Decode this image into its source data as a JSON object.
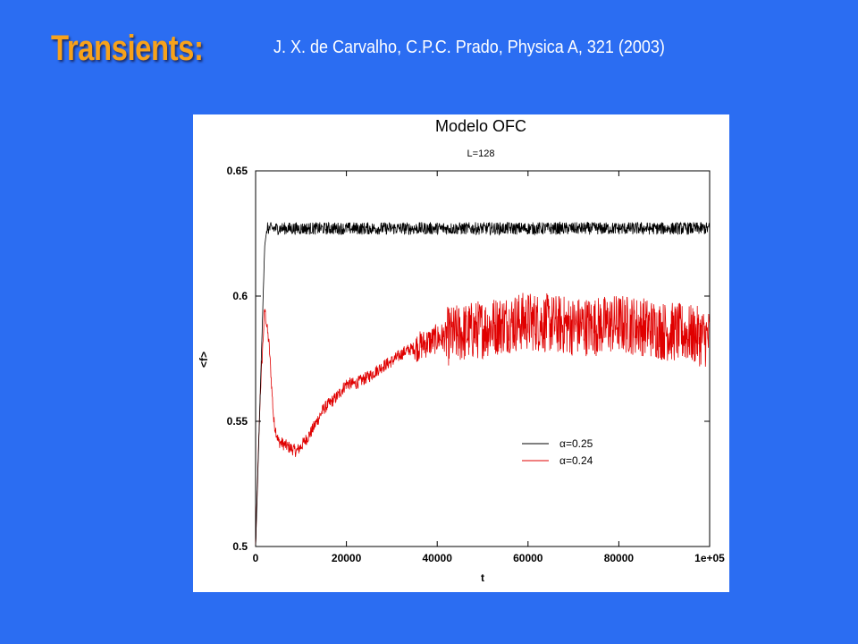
{
  "slide": {
    "title": "Transients:",
    "citation": "J. X. de Carvalho, C.P.C. Prado, Physica A, 321 (2003)"
  },
  "chart_data": {
    "type": "line",
    "title": "Modelo OFC",
    "subtitle": "L=128",
    "xlabel": "t",
    "ylabel": "<f>",
    "xlim": [
      0,
      100000
    ],
    "ylim": [
      0.5,
      0.65
    ],
    "xticks": [
      0,
      20000,
      40000,
      60000,
      80000,
      100000
    ],
    "xtick_labels": [
      "0",
      "20000",
      "40000",
      "60000",
      "80000",
      "1e+05"
    ],
    "yticks": [
      0.5,
      0.55,
      0.6,
      0.65
    ],
    "ytick_labels": [
      "0.5",
      "0.55",
      "0.6",
      "0.65"
    ],
    "grid": false,
    "legend_position": "bottom-right",
    "series": [
      {
        "name": "α=0.25",
        "color": "#000000",
        "x": [
          0,
          2000,
          2500,
          5000,
          10000,
          20000,
          30000,
          40000,
          50000,
          60000,
          70000,
          80000,
          90000,
          100000
        ],
        "y": [
          0.5,
          0.62,
          0.627,
          0.627,
          0.627,
          0.627,
          0.627,
          0.627,
          0.627,
          0.627,
          0.627,
          0.627,
          0.627,
          0.627
        ],
        "noise": 0.0025
      },
      {
        "name": "α=0.24",
        "color": "#e00000",
        "x": [
          0,
          1000,
          2000,
          3000,
          4000,
          5000,
          7000,
          9000,
          10000,
          12000,
          15000,
          18000,
          20000,
          22000,
          25000,
          28000,
          30000,
          33000,
          36000,
          40000,
          45000,
          50000,
          55000,
          60000,
          65000,
          70000,
          75000,
          80000,
          85000,
          90000,
          95000,
          100000
        ],
        "y": [
          0.5,
          0.56,
          0.595,
          0.58,
          0.55,
          0.542,
          0.54,
          0.538,
          0.54,
          0.545,
          0.555,
          0.56,
          0.565,
          0.565,
          0.568,
          0.572,
          0.574,
          0.578,
          0.58,
          0.583,
          0.585,
          0.587,
          0.589,
          0.59,
          0.589,
          0.588,
          0.588,
          0.589,
          0.588,
          0.586,
          0.585,
          0.583
        ],
        "noise": 0.012
      }
    ]
  }
}
